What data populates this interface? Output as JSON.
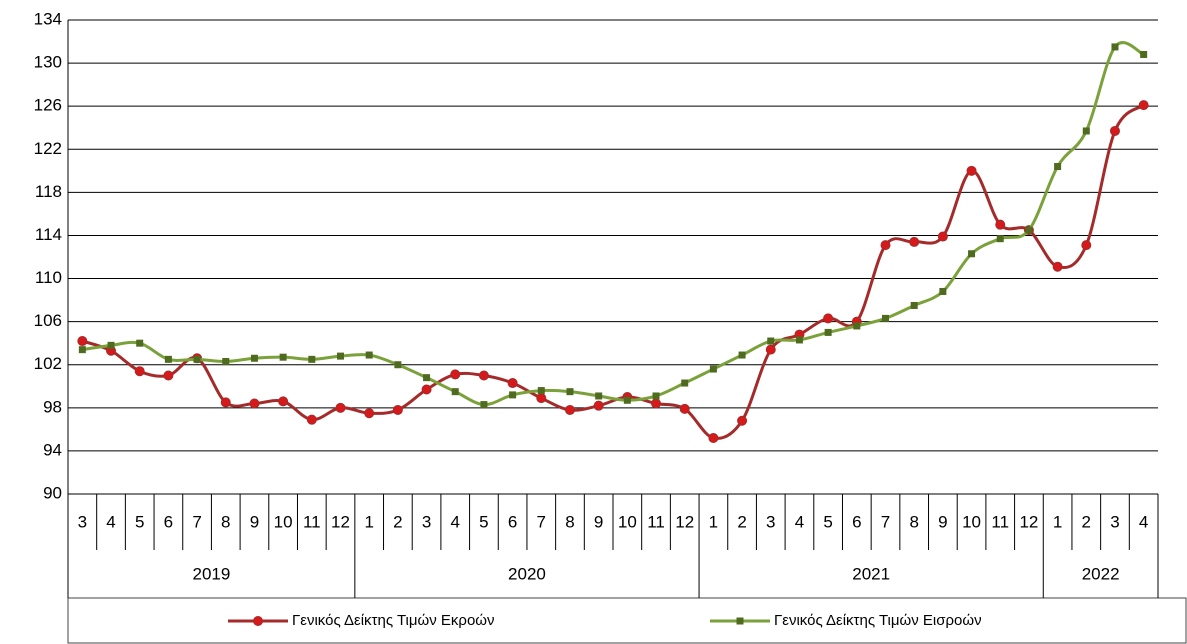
{
  "chart_data": {
    "type": "line",
    "category_groups": [
      {
        "name": "2019",
        "categories": [
          "3",
          "4",
          "5",
          "6",
          "7",
          "8",
          "9",
          "10",
          "11",
          "12"
        ]
      },
      {
        "name": "2020",
        "categories": [
          "1",
          "2",
          "3",
          "4",
          "5",
          "6",
          "7",
          "8",
          "9",
          "10",
          "11",
          "12"
        ]
      },
      {
        "name": "2021",
        "categories": [
          "1",
          "2",
          "3",
          "4",
          "5",
          "6",
          "7",
          "8",
          "9",
          "10",
          "11",
          "12"
        ]
      },
      {
        "name": "2022",
        "categories": [
          "1",
          "2",
          "3",
          "4"
        ]
      }
    ],
    "series": [
      {
        "name": "Γενικός Δείκτης Τιμών Εκροών",
        "color": "#a52a2a",
        "marker": "circle",
        "values": [
          104.2,
          103.3,
          101.4,
          101.0,
          102.6,
          98.5,
          98.4,
          98.6,
          96.9,
          98.0,
          97.5,
          97.8,
          99.7,
          101.1,
          101.0,
          100.3,
          98.9,
          97.8,
          98.2,
          99.0,
          98.4,
          97.9,
          95.2,
          96.8,
          103.4,
          104.8,
          106.3,
          106.0,
          113.1,
          113.4,
          113.9,
          120.0,
          115.0,
          114.5,
          111.1,
          113.1,
          123.7,
          126.1
        ]
      },
      {
        "name": "Γενικός Δείκτης Τιμών Εισροών",
        "color": "#7aa13a",
        "marker": "square",
        "values": [
          103.4,
          103.8,
          104.0,
          102.5,
          102.5,
          102.3,
          102.6,
          102.7,
          102.5,
          102.8,
          102.9,
          102.0,
          100.8,
          99.5,
          98.3,
          99.2,
          99.6,
          99.5,
          99.1,
          98.7,
          99.1,
          100.3,
          101.6,
          102.9,
          104.2,
          104.3,
          105.0,
          105.6,
          106.3,
          107.5,
          108.8,
          112.3,
          113.7,
          114.5,
          120.4,
          123.7,
          131.5,
          130.8
        ]
      }
    ],
    "ylim": [
      90,
      134
    ],
    "yticks": [
      90,
      94,
      98,
      102,
      106,
      110,
      114,
      118,
      122,
      126,
      130,
      134
    ],
    "grid": true
  }
}
